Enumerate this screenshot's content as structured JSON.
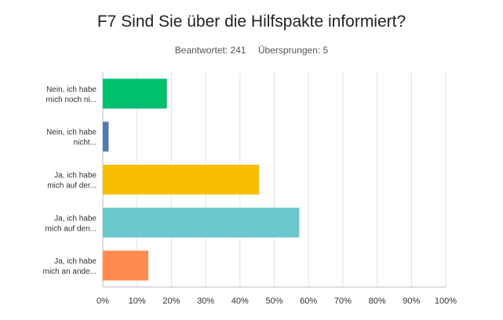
{
  "chart_data": {
    "type": "bar",
    "orientation": "horizontal",
    "title": "F7 Sind Sie über die Hilfspakte informiert?",
    "answered_label": "Beantwortet: 241",
    "skipped_label": "Übersprungen: 5",
    "categories": [
      [
        "Nein, ich habe",
        "mich noch ni..."
      ],
      [
        "Nein, ich habe",
        "nicht..."
      ],
      [
        "Ja, ich habe",
        "mich auf der..."
      ],
      [
        "Ja, ich habe",
        "mich auf den..."
      ],
      [
        "Ja, ich habe",
        "mich an ande..."
      ]
    ],
    "values": [
      18.7,
      1.7,
      45.6,
      57.3,
      13.3
    ],
    "colors": [
      "#00bf6f",
      "#507cb6",
      "#f9be00",
      "#6bc8cd",
      "#ff8b4f"
    ],
    "xlim": [
      0,
      100
    ],
    "xticks": [
      "0%",
      "10%",
      "20%",
      "30%",
      "40%",
      "50%",
      "60%",
      "70%",
      "80%",
      "90%",
      "100%"
    ],
    "grid": true
  }
}
